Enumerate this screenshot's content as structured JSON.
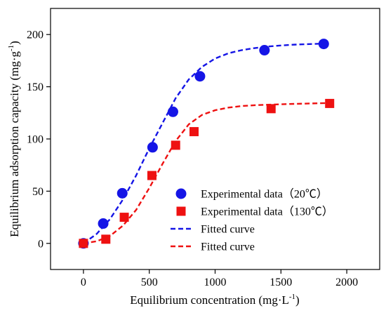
{
  "chart_data": {
    "type": "scatter",
    "xlabel": "Equilibrium concentration (mg·L",
    "xlabel_sup": "-1",
    "xlabel_tail": ")",
    "ylabel": "Equilibrium adsorption capacity (mg·g",
    "ylabel_sup": "-1",
    "ylabel_tail": ")",
    "xlim": [
      -250,
      2250
    ],
    "ylim": [
      -25,
      225
    ],
    "xticks": [
      0,
      500,
      1000,
      1500,
      2000
    ],
    "yticks": [
      0,
      50,
      100,
      150,
      200
    ],
    "legend_position": "lower-right",
    "grid": false,
    "series": [
      {
        "name": "Experimental data（20℃）",
        "kind": "points",
        "marker": "circle",
        "color": "#1515e6",
        "x": [
          0,
          150,
          295,
          525,
          680,
          885,
          1375,
          1825
        ],
        "y": [
          0,
          19,
          48,
          92,
          126,
          160,
          185,
          191
        ]
      },
      {
        "name": "Experimental data（130℃）",
        "kind": "points",
        "marker": "square",
        "color": "#ee1111",
        "x": [
          0,
          170,
          310,
          520,
          700,
          840,
          1425,
          1870
        ],
        "y": [
          0,
          4,
          25,
          65,
          94,
          107,
          129,
          134
        ]
      },
      {
        "name": "Fitted curve",
        "kind": "line",
        "dash": true,
        "color": "#1515e6",
        "x": [
          0,
          100,
          200,
          300,
          400,
          500,
          600,
          700,
          800,
          900,
          1000,
          1100,
          1200,
          1300,
          1400,
          1500,
          1600,
          1700,
          1800,
          1850
        ],
        "y": [
          0,
          9,
          23,
          42,
          65,
          91,
          115,
          139,
          157,
          169,
          177,
          182,
          185,
          187,
          188.5,
          189.5,
          190.3,
          190.8,
          191.2,
          191.5
        ]
      },
      {
        "name": "Fitted curve",
        "kind": "line",
        "dash": true,
        "color": "#ee1111",
        "x": [
          0,
          100,
          200,
          300,
          400,
          500,
          600,
          700,
          800,
          900,
          1000,
          1100,
          1200,
          1300,
          1400,
          1500,
          1600,
          1700,
          1800,
          1890
        ],
        "y": [
          0,
          2,
          7,
          17,
          32,
          53,
          76,
          98,
          114,
          123,
          127.5,
          130,
          131.5,
          132.3,
          132.8,
          133.2,
          133.6,
          133.9,
          134.2,
          134.5
        ]
      }
    ]
  }
}
